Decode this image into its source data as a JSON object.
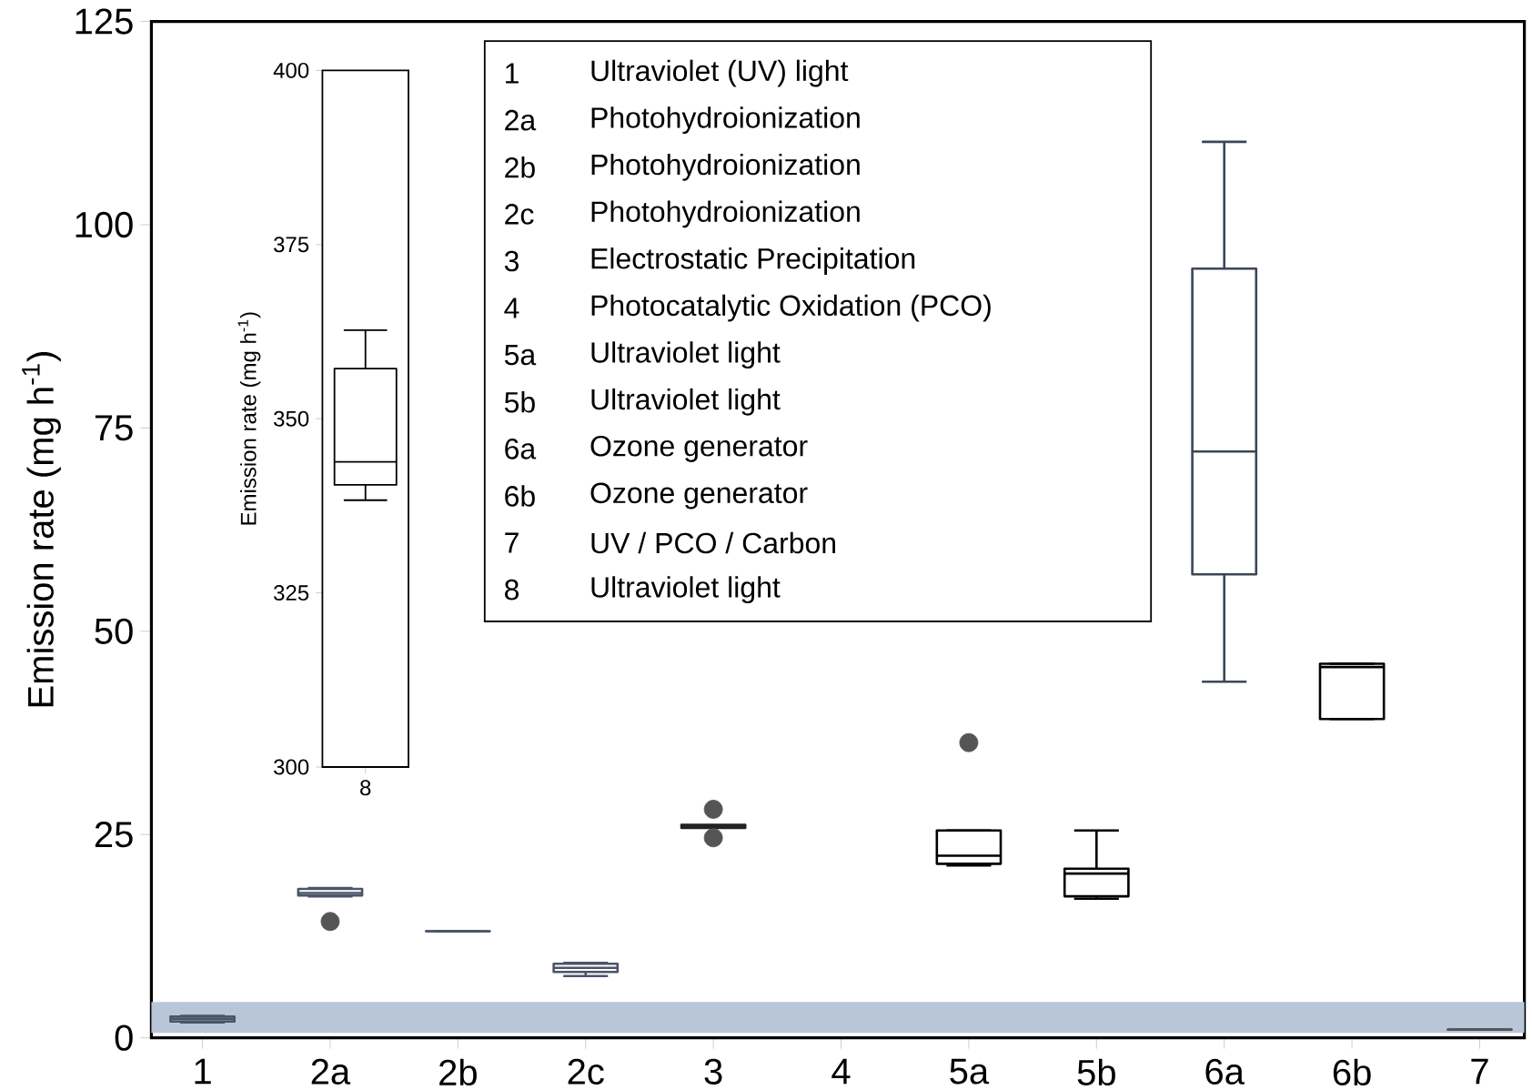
{
  "chart_data": [
    {
      "type": "box",
      "ylabel": "Emission rate (mg h$^{-1}$)",
      "categories": [
        "1",
        "2a",
        "2b",
        "2c",
        "3",
        "4",
        "5a",
        "5b",
        "6a",
        "6b",
        "7"
      ],
      "boxes": [
        {
          "low": 1.9,
          "q1": 2.0,
          "median": 2.3,
          "q3": 2.6,
          "high": 2.7
        },
        {
          "low": 17.4,
          "q1": 17.5,
          "median": 17.8,
          "q3": 18.3,
          "high": 18.4,
          "outliers": [
            14.3
          ]
        },
        {
          "low": 13.1,
          "q1": 13.1,
          "median": 13.1,
          "q3": 13.1,
          "high": 13.1
        },
        {
          "low": 7.6,
          "q1": 8.1,
          "median": 8.6,
          "q3": 9.1,
          "high": 9.2
        },
        {
          "low": 26.0,
          "q1": 25.8,
          "median": 26.0,
          "q3": 26.2,
          "high": 26.0,
          "outliers": [
            28.1,
            24.6
          ]
        },
        null,
        {
          "low": 21.2,
          "q1": 21.4,
          "median": 22.4,
          "q3": 25.5,
          "high": 25.5,
          "outliers": [
            36.3
          ]
        },
        {
          "low": 17.1,
          "q1": 17.4,
          "median": 20.2,
          "q3": 20.8,
          "high": 25.5
        },
        {
          "low": 43.8,
          "q1": 57.0,
          "median": 72.1,
          "q3": 94.6,
          "high": 110.2
        },
        {
          "low": 39.2,
          "q1": 39.2,
          "median": 45.6,
          "q3": 46.0,
          "high": 46.0
        },
        {
          "low": 1.0,
          "q1": 1.0,
          "median": 1.0,
          "q3": 1.0,
          "high": 1.0
        }
      ],
      "colors": [
        "#4a5568",
        "#4a5568",
        "#4a5568",
        "#4a5568",
        "#222222",
        null,
        "#000000",
        "#000000",
        "#3c4656",
        "#000000",
        "#555555"
      ],
      "ylim": [
        0,
        125
      ],
      "yticks": [
        0,
        25,
        50,
        75,
        100,
        125
      ],
      "bands": [
        {
          "axis": "y",
          "from": 0.6,
          "to": 4.4,
          "color": "#b8c6d8"
        }
      ],
      "annotations": [
        "1",
        "Ultraviolet (UV) light",
        "2a",
        "Photohydroionization",
        "2b",
        "Photohydroionization",
        "2c",
        "Photohydroionization",
        "3",
        "Electrostatic Precipitation",
        "4",
        "Photocatalytic Oxidation (PCO)",
        "5a",
        "Ultraviolet light",
        "5b",
        "Ultraviolet light",
        "6a",
        "Ozone generator",
        "6b",
        "Ozone generator",
        "7",
        "UV / PCO / Carbon",
        "8",
        "Ultraviolet light"
      ]
    },
    {
      "type": "box",
      "ylabel": "Emission rate (mg h$^{-1}$)",
      "categories": [
        "8"
      ],
      "boxes": [
        {
          "low": 338.3,
          "q1": 340.5,
          "median": 343.8,
          "q3": 357.2,
          "high": 362.7
        }
      ],
      "ylim": [
        300,
        400
      ],
      "yticks": [
        300,
        325,
        350,
        375,
        400
      ]
    }
  ]
}
